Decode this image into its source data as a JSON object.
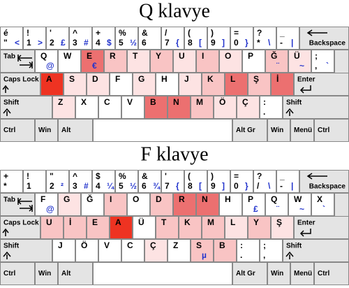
{
  "keyboards": [
    {
      "title": "Q klavye",
      "rows": [
        [
          {
            "t": "é",
            "b": "\"",
            "a": "<",
            "color": "#ffffff"
          },
          {
            "t": "!",
            "b": "1",
            "a": ">",
            "color": "#ffffff"
          },
          {
            "t": "'",
            "b": "2",
            "a": "£",
            "color": "#ffffff"
          },
          {
            "t": "^",
            "b": "3",
            "a": "#",
            "color": "#ffffff"
          },
          {
            "t": "+",
            "b": "4",
            "a": "$",
            "color": "#ffffff"
          },
          {
            "t": "%",
            "b": "5",
            "a": "½",
            "color": "#ffffff"
          },
          {
            "t": "&",
            "b": "6",
            "color": "#ffffff"
          },
          {
            "t": "/",
            "b": "7",
            "a": "{",
            "color": "#ffffff"
          },
          {
            "t": "(",
            "b": "8",
            "a": "[",
            "color": "#ffffff"
          },
          {
            "t": ")",
            "b": "9",
            "a": "]",
            "color": "#ffffff"
          },
          {
            "t": "=",
            "b": "0",
            "a": "}",
            "color": "#ffffff"
          },
          {
            "t": "?",
            "b": "*",
            "a": "\\",
            "color": "#ffffff"
          },
          {
            "t": "_",
            "b": "-",
            "a": "|",
            "color": "#ffffff"
          },
          {
            "b": "Backspace",
            "color": "#e4e4e4"
          }
        ],
        [
          {
            "t": "Tab",
            "color": "#e4e4e4"
          },
          {
            "t": "Q",
            "a": "@",
            "color": "#ffffff"
          },
          {
            "t": "W",
            "color": "#ffffff"
          },
          {
            "t": "E",
            "a": "€",
            "color": "#ec7070"
          },
          {
            "t": "R",
            "color": "#f9c4c4"
          },
          {
            "t": "T",
            "color": "#fde3e3"
          },
          {
            "t": "Y",
            "color": "#f9c4c4"
          },
          {
            "t": "U",
            "color": "#fde3e3"
          },
          {
            "t": "I",
            "color": "#f9c4c4"
          },
          {
            "t": "O",
            "color": "#fde3e3"
          },
          {
            "t": "P",
            "color": "#ffffff"
          },
          {
            "t": "Ğ",
            "a": "¨",
            "color": "#f9c4c4"
          },
          {
            "t": "Ü",
            "a": "~",
            "color": "#fde3e3"
          },
          {
            "t": ";",
            "b": ",",
            "a": "`",
            "color": "#ffffff"
          }
        ],
        [
          {
            "t": "Caps Lock",
            "color": "#e4e4e4"
          },
          {
            "t": "A",
            "color": "#ee3322"
          },
          {
            "t": "S",
            "color": "#fde3e3"
          },
          {
            "t": "D",
            "color": "#fde3e3"
          },
          {
            "t": "F",
            "color": "#ffffff"
          },
          {
            "t": "G",
            "color": "#fde3e3"
          },
          {
            "t": "H",
            "color": "#ffffff"
          },
          {
            "t": "J",
            "color": "#fde3e3"
          },
          {
            "t": "K",
            "color": "#f9c4c4"
          },
          {
            "t": "L",
            "color": "#ec7070"
          },
          {
            "t": "Ş",
            "color": "#f9c4c4"
          },
          {
            "t": "İ",
            "color": "#ec7070"
          },
          {
            "t": "Enter",
            "color": "#e4e4e4"
          }
        ],
        [
          {
            "t": "Shift",
            "color": "#e4e4e4"
          },
          {
            "t": "Z",
            "color": "#fde3e3"
          },
          {
            "t": "X",
            "color": "#ffffff"
          },
          {
            "t": "C",
            "color": "#ffffff"
          },
          {
            "t": "V",
            "color": "#ffffff"
          },
          {
            "t": "B",
            "color": "#ec7070"
          },
          {
            "t": "N",
            "color": "#ec7070"
          },
          {
            "t": "M",
            "color": "#f9c4c4"
          },
          {
            "t": "Ö",
            "color": "#fde3e3"
          },
          {
            "t": "Ç",
            "color": "#fde3e3"
          },
          {
            "t": ":",
            "b": ".",
            "color": "#ffffff"
          },
          {
            "t": "Shift",
            "color": "#e4e4e4"
          }
        ],
        [
          {
            "t": "Ctrl",
            "color": "#e4e4e4"
          },
          {
            "t": "Win",
            "color": "#e4e4e4"
          },
          {
            "t": "Alt",
            "color": "#e4e4e4"
          },
          {
            "color": "#ffffff"
          },
          {
            "t": "Alt Gr",
            "color": "#e4e4e4"
          },
          {
            "t": "Win",
            "color": "#e4e4e4"
          },
          {
            "t": "Menü",
            "color": "#e4e4e4"
          },
          {
            "t": "Ctrl",
            "color": "#e4e4e4"
          }
        ]
      ]
    },
    {
      "title": "F klavye",
      "rows": [
        [
          {
            "t": "+",
            "b": "*",
            "color": "#ffffff"
          },
          {
            "t": "!",
            "b": "1",
            "color": "#ffffff"
          },
          {
            "t": "\"",
            "b": "2",
            "a": "²",
            "color": "#ffffff"
          },
          {
            "t": "^",
            "b": "3",
            "a": "#",
            "color": "#ffffff"
          },
          {
            "t": "$",
            "b": "4",
            "a": "¼",
            "color": "#ffffff"
          },
          {
            "t": "%",
            "b": "5",
            "a": "½",
            "color": "#ffffff"
          },
          {
            "t": "&",
            "b": "6",
            "a": "¾",
            "color": "#ffffff"
          },
          {
            "t": "'",
            "b": "7",
            "a": "{",
            "color": "#ffffff"
          },
          {
            "t": "(",
            "b": "8",
            "a": "[",
            "color": "#ffffff"
          },
          {
            "t": ")",
            "b": "9",
            "a": "]",
            "color": "#ffffff"
          },
          {
            "t": "=",
            "b": "0",
            "a": "}",
            "color": "#ffffff"
          },
          {
            "t": "?",
            "b": "/",
            "a": "\\",
            "color": "#ffffff"
          },
          {
            "t": "_",
            "b": "-",
            "a": "|",
            "color": "#ffffff"
          },
          {
            "b": "Backspace",
            "color": "#e4e4e4"
          }
        ],
        [
          {
            "t": "Tab",
            "color": "#e4e4e4"
          },
          {
            "t": "F",
            "a": "@",
            "color": "#ffffff"
          },
          {
            "t": "G",
            "color": "#fde3e3"
          },
          {
            "t": "Ğ",
            "color": "#ffffff"
          },
          {
            "t": "I",
            "color": "#f9c4c4"
          },
          {
            "t": "O",
            "color": "#ffffff"
          },
          {
            "t": "D",
            "color": "#f9c4c4"
          },
          {
            "t": "R",
            "color": "#ec7070"
          },
          {
            "t": "N",
            "color": "#ec7070"
          },
          {
            "t": "H",
            "color": "#ffffff"
          },
          {
            "t": "P",
            "a": "£",
            "color": "#ffffff"
          },
          {
            "t": "Q",
            "a": "¨",
            "color": "#ffffff"
          },
          {
            "t": "W",
            "a": "~",
            "color": "#ffffff"
          },
          {
            "t": "X",
            "a": "`",
            "color": "#ffffff"
          }
        ],
        [
          {
            "t": "Caps Lock",
            "color": "#e4e4e4"
          },
          {
            "t": "U",
            "color": "#f9c4c4"
          },
          {
            "t": "İ",
            "color": "#f9c4c4"
          },
          {
            "t": "E",
            "color": "#f9c4c4"
          },
          {
            "t": "A",
            "color": "#ee3322"
          },
          {
            "t": "Ü",
            "color": "#ffffff"
          },
          {
            "t": "T",
            "color": "#f9c4c4"
          },
          {
            "t": "K",
            "color": "#f9c4c4"
          },
          {
            "t": "M",
            "color": "#f9c4c4"
          },
          {
            "t": "L",
            "color": "#fde3e3"
          },
          {
            "t": "Y",
            "color": "#f9c4c4"
          },
          {
            "t": "Ş",
            "color": "#fde3e3"
          },
          {
            "t": "Enter",
            "color": "#e4e4e4"
          }
        ],
        [
          {
            "t": "Shift",
            "color": "#e4e4e4"
          },
          {
            "t": "J",
            "color": "#ffffff"
          },
          {
            "t": "Ö",
            "color": "#ffffff"
          },
          {
            "t": "V",
            "color": "#ffffff"
          },
          {
            "t": "C",
            "color": "#ffffff"
          },
          {
            "t": "Ç",
            "color": "#fde3e3"
          },
          {
            "t": "Z",
            "color": "#ffffff"
          },
          {
            "t": "S",
            "a": "µ",
            "color": "#f9c4c4"
          },
          {
            "t": "B",
            "color": "#f9c4c4"
          },
          {
            "t": ":",
            "b": ".",
            "color": "#ffffff"
          },
          {
            "t": ";",
            "b": ",",
            "color": "#ffffff"
          },
          {
            "t": "Shift",
            "color": "#e4e4e4"
          }
        ],
        [
          {
            "t": "Ctrl",
            "color": "#e4e4e4"
          },
          {
            "t": "Win",
            "color": "#e4e4e4"
          },
          {
            "t": "Alt",
            "color": "#e4e4e4"
          },
          {
            "color": "#ffffff"
          },
          {
            "t": "Alt Gr",
            "color": "#e4e4e4"
          },
          {
            "t": "Win",
            "color": "#e4e4e4"
          },
          {
            "t": "Menü",
            "color": "#e4e4e4"
          },
          {
            "t": "Ctrl",
            "color": "#e4e4e4"
          }
        ]
      ]
    }
  ]
}
